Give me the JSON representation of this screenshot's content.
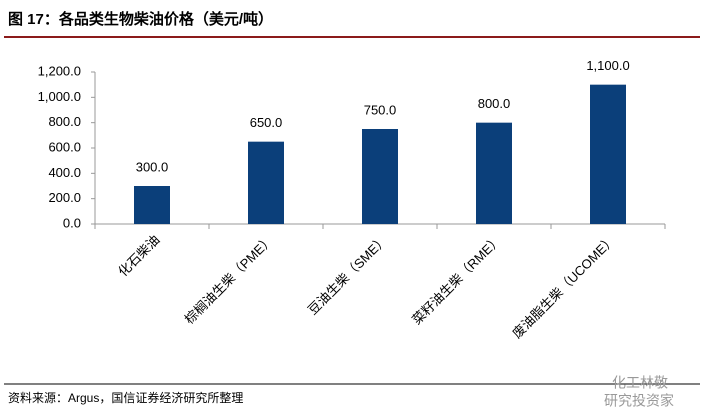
{
  "chart_data": {
    "type": "bar",
    "title": "图 17：各品类生物柴油价格（美元/吨）",
    "categories": [
      "化石柴油",
      "棕榈油生柴（PME）",
      "豆油生柴（SME）",
      "菜籽油生柴（RME）",
      "废油脂生柴（UCOME）"
    ],
    "values": [
      300,
      650,
      750,
      800,
      1100
    ],
    "value_labels": [
      "300.0",
      "650.0",
      "750.0",
      "800.0",
      "1,100.0"
    ],
    "color": "#0b3f7a",
    "ylim": [
      0,
      1200
    ],
    "yticks": [
      {
        "value": 0,
        "label": "0.0"
      },
      {
        "value": 200,
        "label": "200.0"
      },
      {
        "value": 400,
        "label": "400.0"
      },
      {
        "value": 600,
        "label": "600.0"
      },
      {
        "value": 800,
        "label": "800.0"
      },
      {
        "value": 1000,
        "label": "1,000.0"
      },
      {
        "value": 1200,
        "label": "1,200.0"
      }
    ],
    "grid": false,
    "source": "资料来源：Argus，国信证券经济研究所整理",
    "watermark": [
      "化工林敬",
      "研究投资家"
    ]
  }
}
